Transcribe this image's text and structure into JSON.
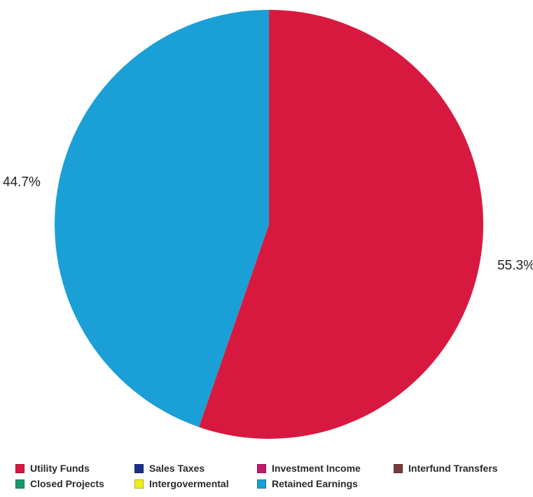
{
  "chart_data": {
    "type": "pie",
    "title": "",
    "start_angle_deg": 0,
    "direction": "clockwise",
    "slices": [
      {
        "label": "Utility Funds",
        "value": 55.3,
        "display": "55.3%",
        "color": "#d8193f"
      },
      {
        "label": "Retained Earnings",
        "value": 44.7,
        "display": "44.7%",
        "color": "#1aa0d6"
      }
    ],
    "legend": {
      "placement": "bottom",
      "entries": [
        {
          "label": "Utility Funds",
          "color": "#d8193f"
        },
        {
          "label": "Sales Taxes",
          "color": "#1b2f8c"
        },
        {
          "label": "Investment Income",
          "color": "#c2186e"
        },
        {
          "label": "Interfund Transfers",
          "color": "#7a3a3a"
        },
        {
          "label": "Closed Projects",
          "color": "#1a9a6c"
        },
        {
          "label": "Intergovermental",
          "color": "#f2ee1e"
        },
        {
          "label": "Retained Earnings",
          "color": "#1aa0d6"
        }
      ]
    }
  }
}
